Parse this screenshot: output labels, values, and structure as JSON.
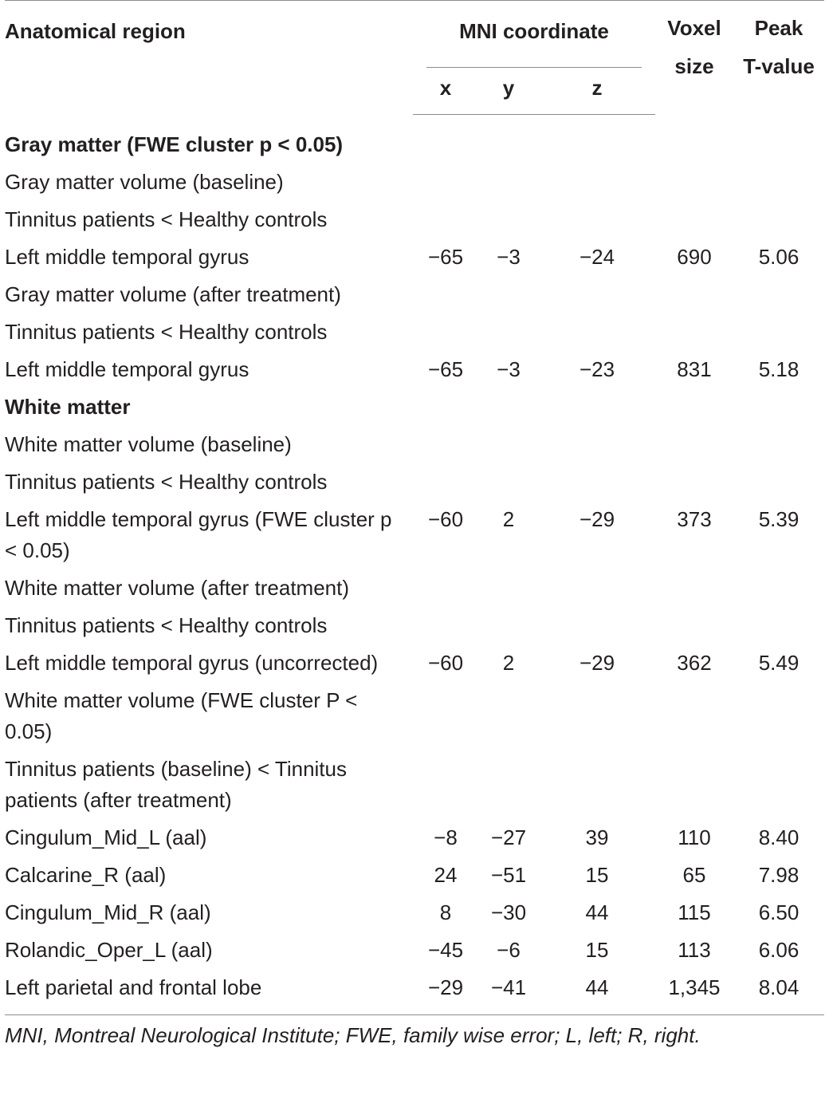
{
  "table": {
    "headers": {
      "region": "Anatomical region",
      "mni": "MNI coordinate",
      "x": "x",
      "y": "y",
      "z": "z",
      "voxel_line1": "Voxel",
      "voxel_line2": "size",
      "peak_line1": "Peak",
      "peak_line2": "T-value"
    },
    "rows": [
      {
        "region": "Gray matter (FWE cluster p < 0.05)",
        "x": "",
        "y": "",
        "z": "",
        "voxel": "",
        "peak": ""
      },
      {
        "region": "Gray matter volume (baseline)",
        "x": "",
        "y": "",
        "z": "",
        "voxel": "",
        "peak": ""
      },
      {
        "region": "Tinnitus patients < Healthy controls",
        "x": "",
        "y": "",
        "z": "",
        "voxel": "",
        "peak": ""
      },
      {
        "region": "Left middle temporal gyrus",
        "x": "−65",
        "y": "−3",
        "z": "−24",
        "voxel": "690",
        "peak": "5.06"
      },
      {
        "region": "Gray matter volume (after treatment)",
        "x": "",
        "y": "",
        "z": "",
        "voxel": "",
        "peak": ""
      },
      {
        "region": "Tinnitus patients < Healthy controls",
        "x": "",
        "y": "",
        "z": "",
        "voxel": "",
        "peak": ""
      },
      {
        "region": "Left middle temporal gyrus",
        "x": "−65",
        "y": "−3",
        "z": "−23",
        "voxel": "831",
        "peak": "5.18"
      },
      {
        "region": "White matter",
        "x": "",
        "y": "",
        "z": "",
        "voxel": "",
        "peak": ""
      },
      {
        "region": "White matter volume (baseline)",
        "x": "",
        "y": "",
        "z": "",
        "voxel": "",
        "peak": ""
      },
      {
        "region": "Tinnitus patients < Healthy controls",
        "x": "",
        "y": "",
        "z": "",
        "voxel": "",
        "peak": ""
      },
      {
        "region": "Left middle temporal gyrus (FWE cluster p < 0.05)",
        "x": "−60",
        "y": "2",
        "z": "−29",
        "voxel": "373",
        "peak": "5.39"
      },
      {
        "region": "White matter volume (after treatment)",
        "x": "",
        "y": "",
        "z": "",
        "voxel": "",
        "peak": ""
      },
      {
        "region": "Tinnitus patients < Healthy controls",
        "x": "",
        "y": "",
        "z": "",
        "voxel": "",
        "peak": ""
      },
      {
        "region": "Left middle temporal gyrus (uncorrected)",
        "x": "−60",
        "y": "2",
        "z": "−29",
        "voxel": "362",
        "peak": "5.49"
      },
      {
        "region": "White matter volume (FWE cluster P < 0.05)",
        "x": "",
        "y": "",
        "z": "",
        "voxel": "",
        "peak": ""
      },
      {
        "region": "Tinnitus patients (baseline) < Tinnitus patients (after treatment)",
        "x": "",
        "y": "",
        "z": "",
        "voxel": "",
        "peak": ""
      },
      {
        "region": "Cingulum_Mid_L (aal)",
        "x": "−8",
        "y": "−27",
        "z": "39",
        "voxel": "110",
        "peak": "8.40"
      },
      {
        "region": "Calcarine_R (aal)",
        "x": "24",
        "y": "−51",
        "z": "15",
        "voxel": "65",
        "peak": "7.98"
      },
      {
        "region": "Cingulum_Mid_R (aal)",
        "x": "8",
        "y": "−30",
        "z": "44",
        "voxel": "115",
        "peak": "6.50"
      },
      {
        "region": "Rolandic_Oper_L (aal)",
        "x": "−45",
        "y": "−6",
        "z": "15",
        "voxel": "113",
        "peak": "6.06"
      },
      {
        "region": "Left parietal and frontal lobe",
        "x": "−29",
        "y": "−41",
        "z": "44",
        "voxel": "1,345",
        "peak": "8.04"
      }
    ]
  },
  "footnote": "MNI, Montreal Neurological Institute; FWE, family wise error; L, left; R, right."
}
